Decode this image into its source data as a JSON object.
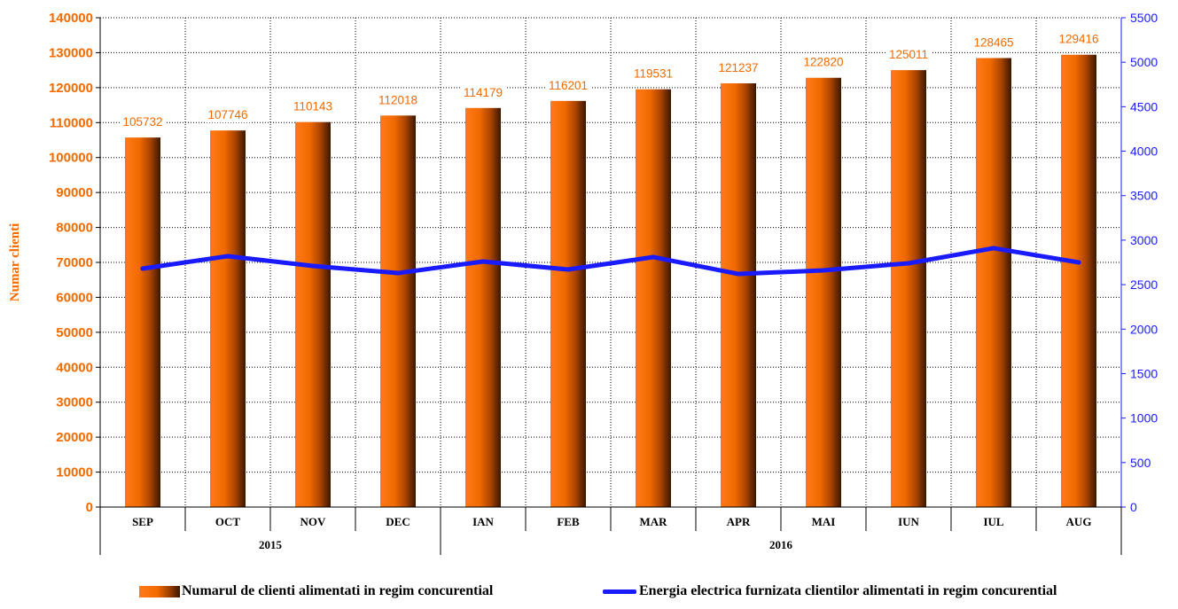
{
  "colors": {
    "bar_accent": "#f26a00",
    "line": "#1a1aff",
    "left_axis": "#f26a00",
    "right_axis": "#1a1aff"
  },
  "legend": {
    "bar_label": "Numarul de clienti alimentati in regim concurential",
    "line_label": "Energia electrica furnizata clientilor alimentati in regim concurential"
  },
  "chart_data": {
    "type": "bar",
    "categories": [
      "SEP",
      "OCT",
      "NOV",
      "DEC",
      "IAN",
      "FEB",
      "MAR",
      "APR",
      "MAI",
      "IUN",
      "IUL",
      "AUG"
    ],
    "years": [
      {
        "label": "2015",
        "categories": [
          "SEP",
          "OCT",
          "NOV",
          "DEC"
        ]
      },
      {
        "label": "2016",
        "categories": [
          "IAN",
          "FEB",
          "MAR",
          "APR",
          "MAI",
          "IUN",
          "IUL",
          "AUG"
        ]
      }
    ],
    "ylabel": "Numar clienti",
    "ylim": [
      0,
      140000
    ],
    "yticks": [
      "0",
      "10000",
      "20000",
      "30000",
      "40000",
      "50000",
      "60000",
      "70000",
      "80000",
      "90000",
      "100000",
      "110000",
      "120000",
      "130000",
      "140000"
    ],
    "y2lim": [
      0,
      5500
    ],
    "y2ticks": [
      "0",
      "500",
      "1000",
      "1500",
      "2000",
      "2500",
      "3000",
      "3500",
      "4000",
      "4500",
      "5000",
      "5500"
    ],
    "grid": true,
    "legend_position": "bottom",
    "series": [
      {
        "name": "Numarul de clienti alimentati in regim concurential",
        "type": "bar",
        "axis": "left",
        "values": [
          105732,
          107746,
          110143,
          112018,
          114179,
          116201,
          119531,
          121237,
          122820,
          125011,
          128465,
          129416
        ],
        "labels": [
          "105732",
          "107746",
          "110143",
          "112018",
          "114179",
          "116201",
          "119531",
          "121237",
          "122820",
          "125011",
          "128465",
          "129416"
        ]
      },
      {
        "name": "Energia electrica furnizata clientilor alimentati in regim concurential",
        "type": "line",
        "axis": "right",
        "values": [
          2680,
          2820,
          2710,
          2630,
          2760,
          2670,
          2810,
          2620,
          2660,
          2740,
          2910,
          2750
        ]
      }
    ]
  }
}
